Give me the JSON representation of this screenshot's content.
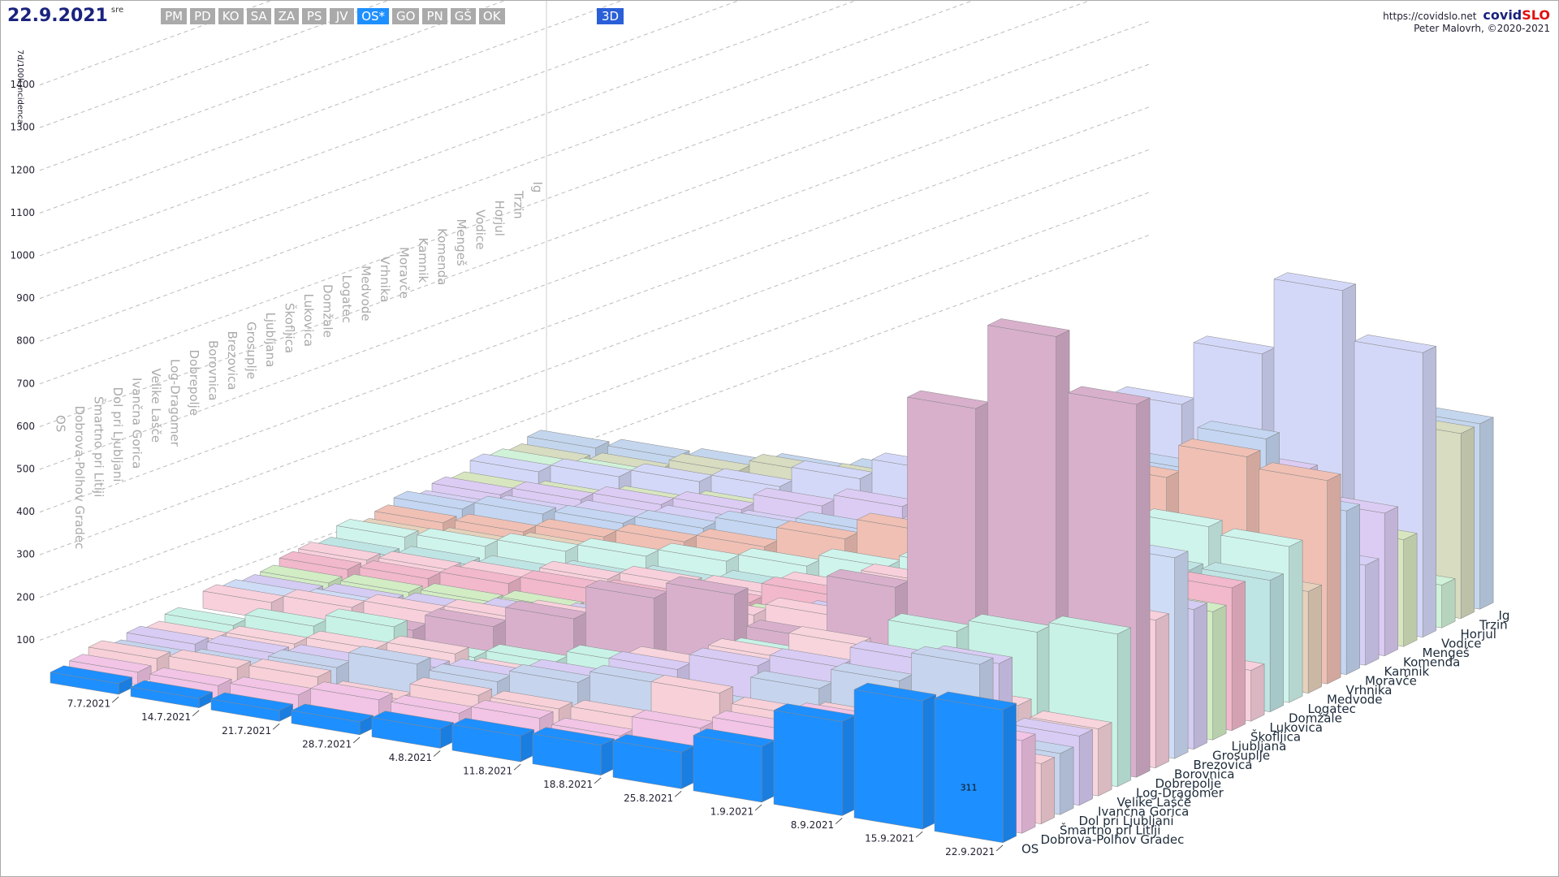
{
  "header": {
    "date": "22.9.2021",
    "weekday": "sre",
    "regions": [
      "PM",
      "PD",
      "KO",
      "SA",
      "ZA",
      "PS",
      "JV",
      "OS*",
      "GO",
      "PN",
      "GŠ",
      "OK"
    ],
    "active_region": 7,
    "view_button": "3D",
    "url": "https://covidslo.net",
    "brand": [
      "covid",
      "SLO"
    ],
    "author": "Peter Malovrh, ©2020-2021"
  },
  "chart_data": {
    "type": "bar3d",
    "y_label": "7d/100k incidenca",
    "categories": [
      "7.7.2021",
      "14.7.2021",
      "21.7.2021",
      "28.7.2021",
      "4.8.2021",
      "11.8.2021",
      "18.8.2021",
      "25.8.2021",
      "1.9.2021",
      "8.9.2021",
      "15.9.2021",
      "22.9.2021"
    ],
    "ylim": [
      0,
      1400
    ],
    "yticks": [
      100,
      200,
      300,
      400,
      500,
      600,
      700,
      800,
      900,
      1000,
      1100,
      1200,
      1300,
      1400
    ],
    "grid": true,
    "series": [
      {
        "name": "OS",
        "color": "#1e8fff",
        "values": [
          25,
          22,
          25,
          30,
          45,
          60,
          70,
          85,
          130,
          220,
          300,
          311
        ]
      },
      {
        "name": "Dobrova-Polhov Gradec",
        "color": "#f2c4e6",
        "values": [
          30,
          30,
          40,
          60,
          60,
          80,
          70,
          120,
          150,
          200,
          260,
          217
        ]
      },
      {
        "name": "Šmartno pri Litiji",
        "color": "#f7d0d8",
        "values": [
          40,
          50,
          60,
          40,
          80,
          80,
          90,
          180,
          160,
          180,
          200,
          141
        ]
      },
      {
        "name": "Dol pri Ljubljani",
        "color": "#c6d4ee",
        "values": [
          20,
          30,
          60,
          100,
          90,
          120,
          150,
          130,
          200,
          250,
          320,
          143
        ]
      },
      {
        "name": "Ivančna Gorica",
        "color": "#d8ccf4",
        "values": [
          30,
          40,
          50,
          70,
          80,
          110,
          160,
          200,
          230,
          280,
          300,
          162
        ]
      },
      {
        "name": "Velike Lašče",
        "color": "#f8d4dc",
        "values": [
          20,
          40,
          60,
          80,
          60,
          50,
          150,
          200,
          260,
          200,
          180,
          157
        ]
      },
      {
        "name": "Log-Dragomer",
        "color": "#c8f2e6",
        "values": [
          30,
          60,
          90,
          50,
          70,
          100,
          120,
          180,
          220,
          300,
          330,
          357
        ]
      },
      {
        "name": "Dobrepolje",
        "color": "#d8b0cc",
        "values": [
          0,
          30,
          60,
          100,
          150,
          230,
          270,
          200,
          350,
          800,
          1000,
          873
        ]
      },
      {
        "name": "Borovnica",
        "color": "#f8d0dc",
        "values": [
          40,
          60,
          80,
          100,
          130,
          150,
          200,
          230,
          250,
          280,
          360,
          346
        ]
      },
      {
        "name": "Brezovica",
        "color": "#cfdcf6",
        "values": [
          30,
          40,
          50,
          60,
          80,
          100,
          140,
          180,
          200,
          240,
          300,
          470
        ]
      },
      {
        "name": "Grosuplje",
        "color": "#d4ccf2",
        "values": [
          20,
          30,
          40,
          60,
          80,
          100,
          140,
          180,
          220,
          260,
          300,
          327
        ]
      },
      {
        "name": "Ljubljana",
        "color": "#d2ecc4",
        "values": [
          20,
          30,
          40,
          55,
          70,
          90,
          120,
          150,
          190,
          240,
          290,
          300
        ]
      },
      {
        "name": "Škofljica",
        "color": "#f2b8cc",
        "values": [
          30,
          40,
          60,
          80,
          90,
          110,
          160,
          200,
          220,
          260,
          330,
          334
        ]
      },
      {
        "name": "Lukovica",
        "color": "#f8d0dc",
        "values": [
          30,
          40,
          50,
          80,
          100,
          110,
          150,
          200,
          180,
          150,
          130,
          119
        ]
      },
      {
        "name": "Domžale",
        "color": "#bfe4e4",
        "values": [
          20,
          30,
          40,
          60,
          80,
          100,
          120,
          160,
          200,
          250,
          300,
          308
        ]
      },
      {
        "name": "Logatec",
        "color": "#cff4ec",
        "values": [
          40,
          50,
          70,
          90,
          110,
          130,
          160,
          190,
          240,
          300,
          380,
          365
        ]
      },
      {
        "name": "Medvode",
        "color": "#e6d2bc",
        "values": [
          20,
          30,
          50,
          60,
          80,
          100,
          130,
          170,
          210,
          260,
          250,
          238
        ]
      },
      {
        "name": "Vrhnika",
        "color": "#f0c0b4",
        "values": [
          30,
          40,
          60,
          80,
          100,
          150,
          200,
          250,
          330,
          420,
          500,
          476
        ]
      },
      {
        "name": "Moravče",
        "color": "#c4d6f2",
        "values": [
          40,
          60,
          70,
          90,
          120,
          150,
          170,
          200,
          300,
          420,
          520,
          383
        ]
      },
      {
        "name": "Kamnik",
        "color": "#d6d0f6",
        "values": [
          20,
          40,
          60,
          80,
          100,
          120,
          150,
          200,
          250,
          300,
          320,
          234
        ]
      },
      {
        "name": "Komenda",
        "color": "#dcccf4",
        "values": [
          30,
          50,
          70,
          90,
          130,
          160,
          190,
          230,
          300,
          360,
          400,
          334
        ]
      },
      {
        "name": "Mengeš",
        "color": "#d8e6c0",
        "values": [
          20,
          30,
          50,
          70,
          100,
          120,
          150,
          190,
          230,
          280,
          300,
          250
        ]
      },
      {
        "name": "Vodice",
        "color": "#d4d8f8",
        "values": [
          40,
          60,
          80,
          100,
          150,
          200,
          250,
          300,
          450,
          600,
          780,
          666
        ]
      },
      {
        "name": "Horjul",
        "color": "#d0f2d8",
        "values": [
          30,
          40,
          50,
          60,
          80,
          100,
          110,
          130,
          150,
          170,
          130,
          100
        ]
      },
      {
        "name": "Trzin",
        "color": "#d8dcc0",
        "values": [
          20,
          30,
          60,
          90,
          100,
          130,
          160,
          200,
          260,
          330,
          420,
          433
        ]
      },
      {
        "name": "Ig",
        "color": "#c4d6ee",
        "values": [
          30,
          40,
          50,
          70,
          90,
          110,
          150,
          190,
          240,
          300,
          380,
          434
        ]
      }
    ]
  }
}
